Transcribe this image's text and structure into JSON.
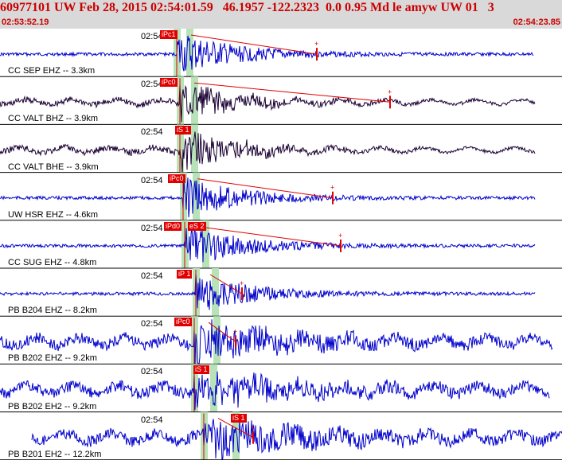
{
  "header": {
    "title": "60977101 UW Feb 28, 2015 02:54:01.59   46.1957 -122.2323  0.0 0.95 Md le amyw UW 01   3",
    "time_start": "02:53:52.19",
    "time_end": "02:54:23.85"
  },
  "colors": {
    "header_bg": "#d9d9d9",
    "header_text": "#cc0000",
    "trace_blue": "#0000cc",
    "trace_dark": "#1a0033",
    "pick_red": "#e00000",
    "window_green": "#b8e3b8"
  },
  "traces": [
    {
      "label": "CC SEP EHZ -- 3.3km",
      "time": "02:54",
      "pick": "iPc1",
      "color": "blue"
    },
    {
      "label": "CC VALT BHZ -- 3.9km",
      "time": "02:54",
      "pick": "iPc0",
      "color": "dark"
    },
    {
      "label": "CC VALT BHE -- 3.9km",
      "time": "02:54",
      "pick": "iS 1",
      "color": "dark"
    },
    {
      "label": "UW HSR EHZ -- 4.6km",
      "time": "02:54",
      "pick": "iPc0",
      "color": "blue"
    },
    {
      "label": "CC SUG EHZ -- 4.8km",
      "time": "02:54",
      "pick": "iPd0",
      "pick2": "eS 2",
      "color": "blue"
    },
    {
      "label": "PB B204 EHZ -- 8.2km",
      "time": "02:54",
      "pick": "iP 1",
      "color": "blue"
    },
    {
      "label": "PB B202 EHZ -- 9.2km",
      "time": "02:54",
      "pick": "iPc0",
      "color": "blue"
    },
    {
      "label": "PB B202 EH2 -- 9.2km",
      "time": "02:54",
      "pick": "iS 1",
      "color": "blue"
    },
    {
      "label": "PB B201 EH2 -- 12.2km",
      "time": "02:54",
      "pick": "iS 1",
      "color": "blue"
    }
  ]
}
